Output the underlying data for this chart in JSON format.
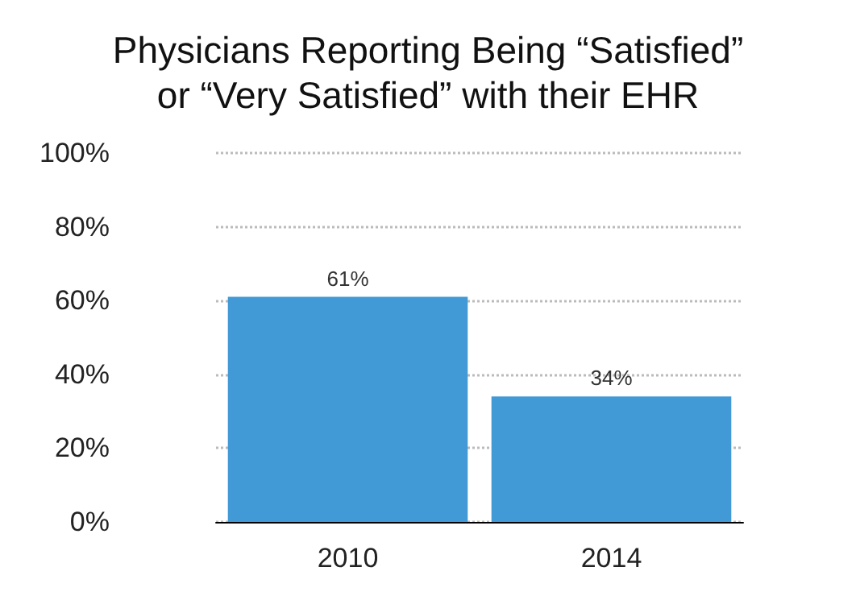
{
  "chart_data": {
    "type": "bar",
    "title": "Physicians Reporting Being “Satisfied”\nor “Very Satisfied” with their EHR",
    "categories": [
      "2010",
      "2014"
    ],
    "values": [
      61,
      34
    ],
    "color": "#4199d6",
    "value_labels": [
      "61%",
      "34%"
    ],
    "ylim": [
      0,
      100
    ],
    "yticks": [
      {
        "value": 0,
        "label": "0%"
      },
      {
        "value": 20,
        "label": "20%"
      },
      {
        "value": 40,
        "label": "40%"
      },
      {
        "value": 60,
        "label": "60%"
      },
      {
        "value": 80,
        "label": "80%"
      },
      {
        "value": 100,
        "label": "100%"
      }
    ],
    "grid": "y"
  }
}
